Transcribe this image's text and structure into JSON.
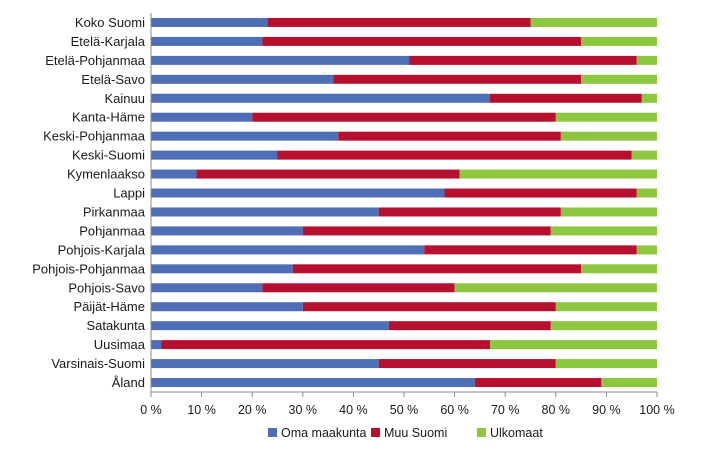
{
  "chart_data": {
    "type": "bar",
    "orientation": "horizontal",
    "stacked": true,
    "percent_stacked": true,
    "categories": [
      "Koko Suomi",
      "Etelä-Karjala",
      "Etelä-Pohjanmaa",
      "Etelä-Savo",
      "Kainuu",
      "Kanta-Häme",
      "Keski-Pohjanmaa",
      "Keski-Suomi",
      "Kymenlaakso",
      "Lappi",
      "Pirkanmaa",
      "Pohjanmaa",
      "Pohjois-Karjala",
      "Pohjois-Pohjanmaa",
      "Pohjois-Savo",
      "Päijät-Häme",
      "Satakunta",
      "Uusimaa",
      "Varsinais-Suomi",
      "Åland"
    ],
    "series": [
      {
        "name": "Oma maakunta",
        "color": "#4e6fb6",
        "values": [
          23,
          22,
          51,
          36,
          67,
          20,
          37,
          25,
          9,
          58,
          45,
          30,
          54,
          28,
          22,
          30,
          47,
          2,
          45,
          64
        ]
      },
      {
        "name": "Muu Suomi",
        "color": "#b7102e",
        "values": [
          52,
          63,
          45,
          49,
          30,
          60,
          44,
          70,
          52,
          38,
          36,
          49,
          42,
          57,
          38,
          50,
          32,
          65,
          35,
          25
        ]
      },
      {
        "name": "Ulkomaat",
        "color": "#8dc63f",
        "values": [
          25,
          15,
          4,
          15,
          3,
          20,
          19,
          5,
          39,
          4,
          19,
          21,
          4,
          15,
          40,
          20,
          21,
          33,
          20,
          11
        ]
      }
    ],
    "xlim": [
      0,
      100
    ],
    "x_ticks": [
      "0 %",
      "10 %",
      "20 %",
      "30 %",
      "40 %",
      "50 %",
      "60 %",
      "70 %",
      "80 %",
      "90 %",
      "100 %"
    ],
    "legend_position": "bottom",
    "grid": false
  }
}
